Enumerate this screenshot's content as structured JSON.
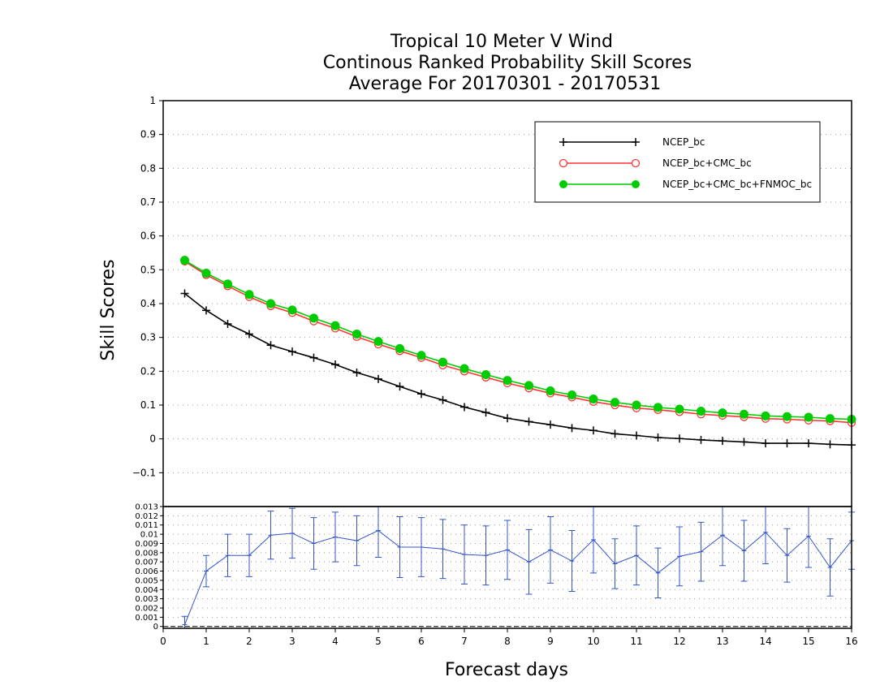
{
  "chart_data": [
    {
      "type": "line",
      "title_lines": [
        "Tropical 10 Meter V Wind",
        "Continous Ranked Probability Skill Scores",
        "Average For 20170301 - 20170531"
      ],
      "ylabel": "Skill Scores",
      "xlim": [
        0,
        16
      ],
      "ylim": [
        -0.2,
        1
      ],
      "yticks": [
        "−0.1",
        "0",
        "0.1",
        "0.2",
        "0.3",
        "0.4",
        "0.5",
        "0.6",
        "0.7",
        "0.8",
        "0.9",
        "1"
      ],
      "grid": true,
      "legend_position": "top-right",
      "x": [
        0.5,
        1,
        1.5,
        2,
        2.5,
        3,
        3.5,
        4,
        4.5,
        5,
        5.5,
        6,
        6.5,
        7,
        7.5,
        8,
        8.5,
        9,
        9.5,
        10,
        10.5,
        11,
        11.5,
        12,
        12.5,
        13,
        13.5,
        14,
        14.5,
        15,
        15.5,
        16
      ],
      "series": [
        {
          "name": "NCEP_bc",
          "color": "#000000",
          "marker": "plus",
          "values": [
            0.43,
            0.38,
            0.34,
            0.31,
            0.277,
            0.258,
            0.24,
            0.22,
            0.196,
            0.177,
            0.155,
            0.133,
            0.115,
            0.094,
            0.078,
            0.061,
            0.051,
            0.042,
            0.032,
            0.025,
            0.015,
            0.01,
            0.004,
            0.001,
            -0.003,
            -0.006,
            -0.009,
            -0.013,
            -0.013,
            -0.013,
            -0.016,
            -0.018
          ]
        },
        {
          "name": "NCEP_bc+CMC_bc",
          "color": "#ff3333",
          "marker": "open-circle",
          "values": [
            0.525,
            0.485,
            0.452,
            0.42,
            0.393,
            0.373,
            0.348,
            0.327,
            0.302,
            0.28,
            0.26,
            0.24,
            0.218,
            0.2,
            0.182,
            0.165,
            0.15,
            0.135,
            0.123,
            0.11,
            0.1,
            0.091,
            0.086,
            0.08,
            0.073,
            0.069,
            0.065,
            0.06,
            0.058,
            0.055,
            0.053,
            0.048
          ]
        },
        {
          "name": "NCEP_bc+CMC_bc+FNMOC_bc",
          "color": "#00cc00",
          "marker": "filled-circle",
          "values": [
            0.528,
            0.49,
            0.458,
            0.427,
            0.4,
            0.381,
            0.357,
            0.335,
            0.31,
            0.288,
            0.267,
            0.247,
            0.227,
            0.208,
            0.19,
            0.173,
            0.158,
            0.142,
            0.13,
            0.118,
            0.108,
            0.1,
            0.093,
            0.088,
            0.082,
            0.077,
            0.073,
            0.068,
            0.066,
            0.064,
            0.06,
            0.058
          ]
        }
      ]
    },
    {
      "type": "line",
      "xlabel": "Forecast days",
      "xlim": [
        0,
        16
      ],
      "ylim": [
        -0.0002,
        0.013
      ],
      "xticks": [
        "0",
        "1",
        "2",
        "3",
        "4",
        "5",
        "6",
        "7",
        "8",
        "9",
        "10",
        "11",
        "12",
        "13",
        "14",
        "15",
        "16"
      ],
      "yticks": [
        "0",
        "0.001",
        "0.002",
        "0.003",
        "0.004",
        "0.005",
        "0.006",
        "0.007",
        "0.008",
        "0.009",
        "0.01",
        "0.011",
        "0.012",
        "0.013"
      ],
      "grid": true,
      "series": [
        {
          "color": "#3355cc",
          "marker": "error-bar",
          "x": [
            0.5,
            1,
            1.5,
            2,
            2.5,
            3,
            3.5,
            4,
            4.5,
            5,
            5.5,
            6,
            6.5,
            7,
            7.5,
            8,
            8.5,
            9,
            9.5,
            10,
            10.5,
            11,
            11.5,
            12,
            12.5,
            13,
            13.5,
            14,
            14.5,
            15,
            15.5,
            16
          ],
          "values": [
            0.0002,
            0.006,
            0.0077,
            0.0077,
            0.0099,
            0.0101,
            0.009,
            0.0097,
            0.0093,
            0.0104,
            0.0086,
            0.0086,
            0.0084,
            0.0078,
            0.0077,
            0.0083,
            0.007,
            0.0083,
            0.0071,
            0.0094,
            0.0068,
            0.0077,
            0.0058,
            0.0076,
            0.0081,
            0.0099,
            0.0082,
            0.0102,
            0.0077,
            0.0098,
            0.0064,
            0.0093
          ],
          "error": [
            0.0009,
            0.0017,
            0.0023,
            0.0023,
            0.0026,
            0.0027,
            0.0028,
            0.0027,
            0.0027,
            0.0029,
            0.0033,
            0.0032,
            0.0032,
            0.0032,
            0.0032,
            0.0032,
            0.0035,
            0.0036,
            0.0033,
            0.0036,
            0.0027,
            0.0032,
            0.0027,
            0.0032,
            0.0032,
            0.0033,
            0.0033,
            0.0034,
            0.0029,
            0.0034,
            0.0031,
            0.0031
          ]
        }
      ]
    }
  ]
}
